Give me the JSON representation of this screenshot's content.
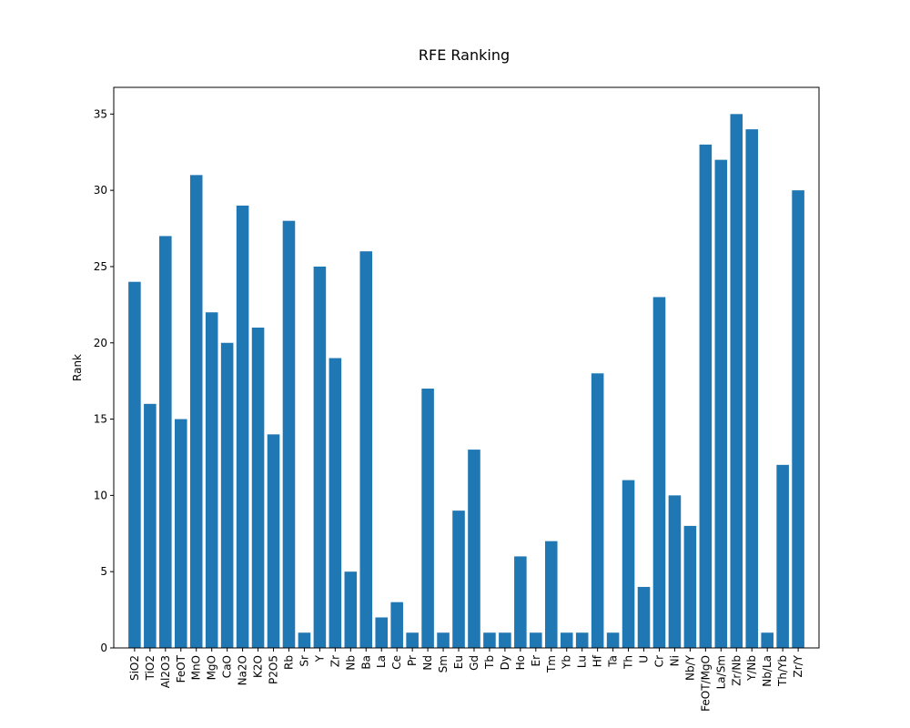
{
  "chart_data": {
    "type": "bar",
    "title": "RFE Ranking",
    "xlabel": "",
    "ylabel": "Rank",
    "ylim": [
      0,
      36.75
    ],
    "yticks": [
      0,
      5,
      10,
      15,
      20,
      25,
      30,
      35
    ],
    "grid": false,
    "bar_color": "#1f77b4",
    "categories": [
      "SiO2",
      "TiO2",
      "Al2O3",
      "FeOT",
      "MnO",
      "MgO",
      "CaO",
      "Na2O",
      "K2O",
      "P2O5",
      "Rb",
      "Sr",
      "Y",
      "Zr",
      "Nb",
      "Ba",
      "La",
      "Ce",
      "Pr",
      "Nd",
      "Sm",
      "Eu",
      "Gd",
      "Tb",
      "Dy",
      "Ho",
      "Er",
      "Tm",
      "Yb",
      "Lu",
      "Hf",
      "Ta",
      "Th",
      "U",
      "Cr",
      "Ni",
      "Nb/Y",
      "FeOT/MgO",
      "La/Sm",
      "Zr/Nb",
      "Y/Nb",
      "Nb/La",
      "Th/Yb",
      "Zr/Y"
    ],
    "values": [
      24,
      16,
      27,
      15,
      31,
      22,
      20,
      29,
      21,
      14,
      28,
      1,
      25,
      19,
      5,
      26,
      2,
      3,
      1,
      17,
      1,
      9,
      13,
      1,
      1,
      6,
      1,
      7,
      1,
      1,
      18,
      1,
      11,
      4,
      23,
      10,
      8,
      33,
      32,
      35,
      34,
      1,
      12,
      30
    ]
  }
}
